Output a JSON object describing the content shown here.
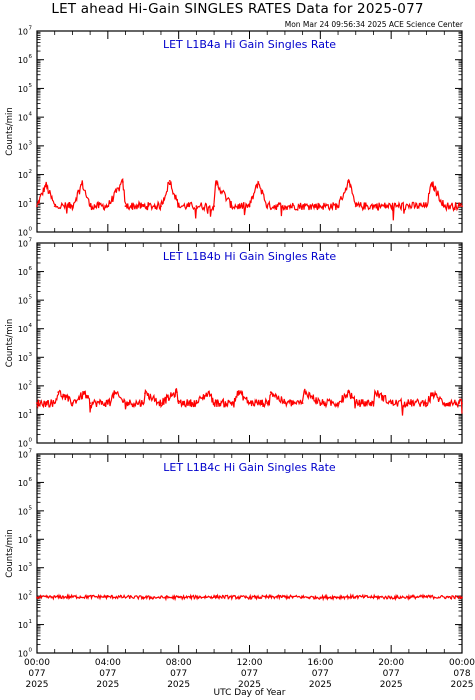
{
  "header": {
    "title": "LET ahead Hi-Gain SINGLES RATES Data for 2025-077",
    "timestamp": "Mon Mar 24 09:56:34 2025 ACE Science Center"
  },
  "colors": {
    "trace": "#ff0000",
    "panel_title": "#0000cc",
    "axis": "#000000"
  },
  "chart_data": [
    {
      "type": "line",
      "title": "LET L1B4a Hi Gain Singles Rate",
      "ylabel": "Counts/min",
      "yscale": "log",
      "ylim": [
        1,
        10000000
      ],
      "ytick_labels": [
        {
          "base": "10",
          "exp": "0"
        },
        {
          "base": "10",
          "exp": "1"
        },
        {
          "base": "10",
          "exp": "2"
        },
        {
          "base": "10",
          "exp": "3"
        },
        {
          "base": "10",
          "exp": "4"
        },
        {
          "base": "10",
          "exp": "5"
        },
        {
          "base": "10",
          "exp": "6"
        },
        {
          "base": "10",
          "exp": "7"
        }
      ],
      "series": [
        {
          "baseline": 8,
          "x": [
            0,
            0.5,
            1,
            2,
            2.55,
            3,
            4,
            4.85,
            5,
            6,
            7,
            7.5,
            8,
            9,
            10,
            10.1,
            11,
            12,
            12.5,
            13,
            14,
            15,
            16,
            17,
            17.6,
            18,
            19,
            20,
            21,
            22,
            22.3,
            23,
            24
          ],
          "y": [
            8,
            45,
            8,
            8,
            50,
            8,
            8,
            55,
            8,
            8,
            8,
            60,
            8,
            8,
            8,
            55,
            8,
            8,
            55,
            8,
            8,
            8,
            8,
            8,
            55,
            8,
            8,
            8,
            8,
            8,
            50,
            8,
            8
          ]
        }
      ]
    },
    {
      "type": "line",
      "title": "LET L1B4b Hi Gain Singles Rate",
      "ylabel": "Counts/min",
      "yscale": "log",
      "ylim": [
        1,
        10000000
      ],
      "ytick_labels": [
        {
          "base": "10",
          "exp": "0"
        },
        {
          "base": "10",
          "exp": "1"
        },
        {
          "base": "10",
          "exp": "2"
        },
        {
          "base": "10",
          "exp": "3"
        },
        {
          "base": "10",
          "exp": "4"
        },
        {
          "base": "10",
          "exp": "5"
        },
        {
          "base": "10",
          "exp": "6"
        },
        {
          "base": "10",
          "exp": "7"
        }
      ],
      "series": [
        {
          "baseline": 25,
          "x": [
            0,
            1,
            1.2,
            2,
            2.7,
            3,
            4,
            4.4,
            5,
            6,
            6.1,
            7,
            7.9,
            8,
            9,
            9.7,
            10,
            11,
            11.4,
            12,
            13,
            13.2,
            14,
            15,
            15.1,
            16,
            17,
            17.6,
            18,
            19,
            19.1,
            20,
            21,
            22,
            22.3,
            23,
            24
          ],
          "y": [
            25,
            25,
            60,
            25,
            55,
            25,
            25,
            55,
            25,
            25,
            55,
            25,
            60,
            25,
            25,
            60,
            25,
            25,
            60,
            25,
            25,
            60,
            25,
            25,
            65,
            25,
            25,
            60,
            25,
            25,
            60,
            25,
            25,
            25,
            55,
            25,
            25
          ]
        }
      ]
    },
    {
      "type": "line",
      "title": "LET L1B4c Hi Gain Singles Rate",
      "ylabel": "Counts/min",
      "yscale": "log",
      "ylim": [
        1,
        10000000
      ],
      "ytick_labels": [
        {
          "base": "10",
          "exp": "0"
        },
        {
          "base": "10",
          "exp": "1"
        },
        {
          "base": "10",
          "exp": "2"
        },
        {
          "base": "10",
          "exp": "3"
        },
        {
          "base": "10",
          "exp": "4"
        },
        {
          "base": "10",
          "exp": "5"
        },
        {
          "base": "10",
          "exp": "6"
        },
        {
          "base": "10",
          "exp": "7"
        }
      ],
      "series": [
        {
          "baseline": 90,
          "x": [
            0,
            2,
            4,
            6,
            8,
            10,
            12,
            14,
            16,
            18,
            20,
            22,
            24
          ],
          "y": [
            90,
            95,
            95,
            90,
            90,
            95,
            90,
            95,
            90,
            95,
            90,
            95,
            90
          ]
        }
      ]
    }
  ],
  "x_axis": {
    "label": "UTC Day of Year",
    "ticks": [
      {
        "hours": 0,
        "time": "00:00",
        "doy": "077",
        "year": "2025"
      },
      {
        "hours": 4,
        "time": "04:00",
        "doy": "077",
        "year": "2025"
      },
      {
        "hours": 8,
        "time": "08:00",
        "doy": "077",
        "year": "2025"
      },
      {
        "hours": 12,
        "time": "12:00",
        "doy": "077",
        "year": "2025"
      },
      {
        "hours": 16,
        "time": "16:00",
        "doy": "077",
        "year": "2025"
      },
      {
        "hours": 20,
        "time": "20:00",
        "doy": "077",
        "year": "2025"
      },
      {
        "hours": 24,
        "time": "00:00",
        "doy": "078",
        "year": "2025"
      }
    ],
    "range": [
      0,
      24
    ]
  }
}
